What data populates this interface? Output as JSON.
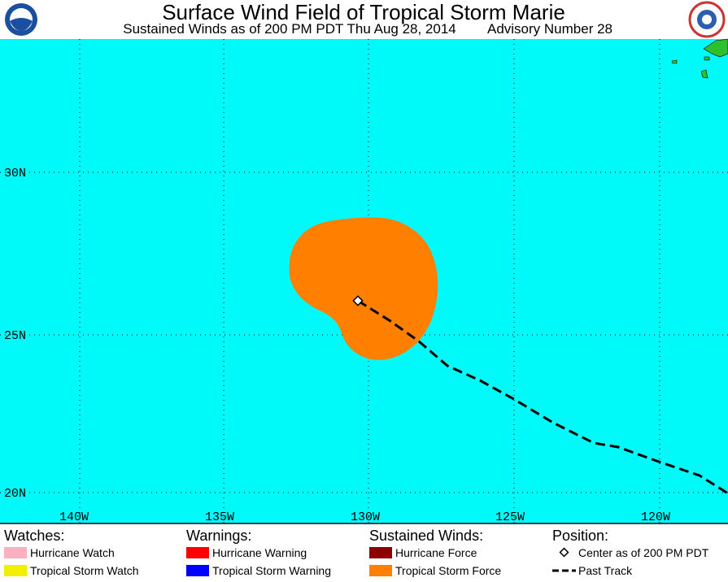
{
  "header": {
    "title": "Surface Wind Field of Tropical Storm Marie",
    "subtitle": "Sustained Winds as of 200 PM PDT Thu Aug 28, 2014",
    "advisory": "Advisory Number 28"
  },
  "map": {
    "lat_labels": [
      "30N",
      "25N",
      "20N"
    ],
    "lon_labels": [
      "140W",
      "135W",
      "130W",
      "125W",
      "120W"
    ]
  },
  "legend": [
    {
      "heading": "Watches:",
      "items": [
        "Hurricane Watch",
        "Tropical Storm Watch"
      ]
    },
    {
      "heading": "Warnings:",
      "items": [
        "Hurricane Warning",
        "Tropical Storm Warning"
      ]
    },
    {
      "heading": "Sustained Winds:",
      "items": [
        "Hurricane Force",
        "Tropical Storm Force"
      ]
    },
    {
      "heading": "Position:",
      "items": [
        "Center as of 200 PM PDT",
        "Past Track"
      ]
    }
  ]
}
